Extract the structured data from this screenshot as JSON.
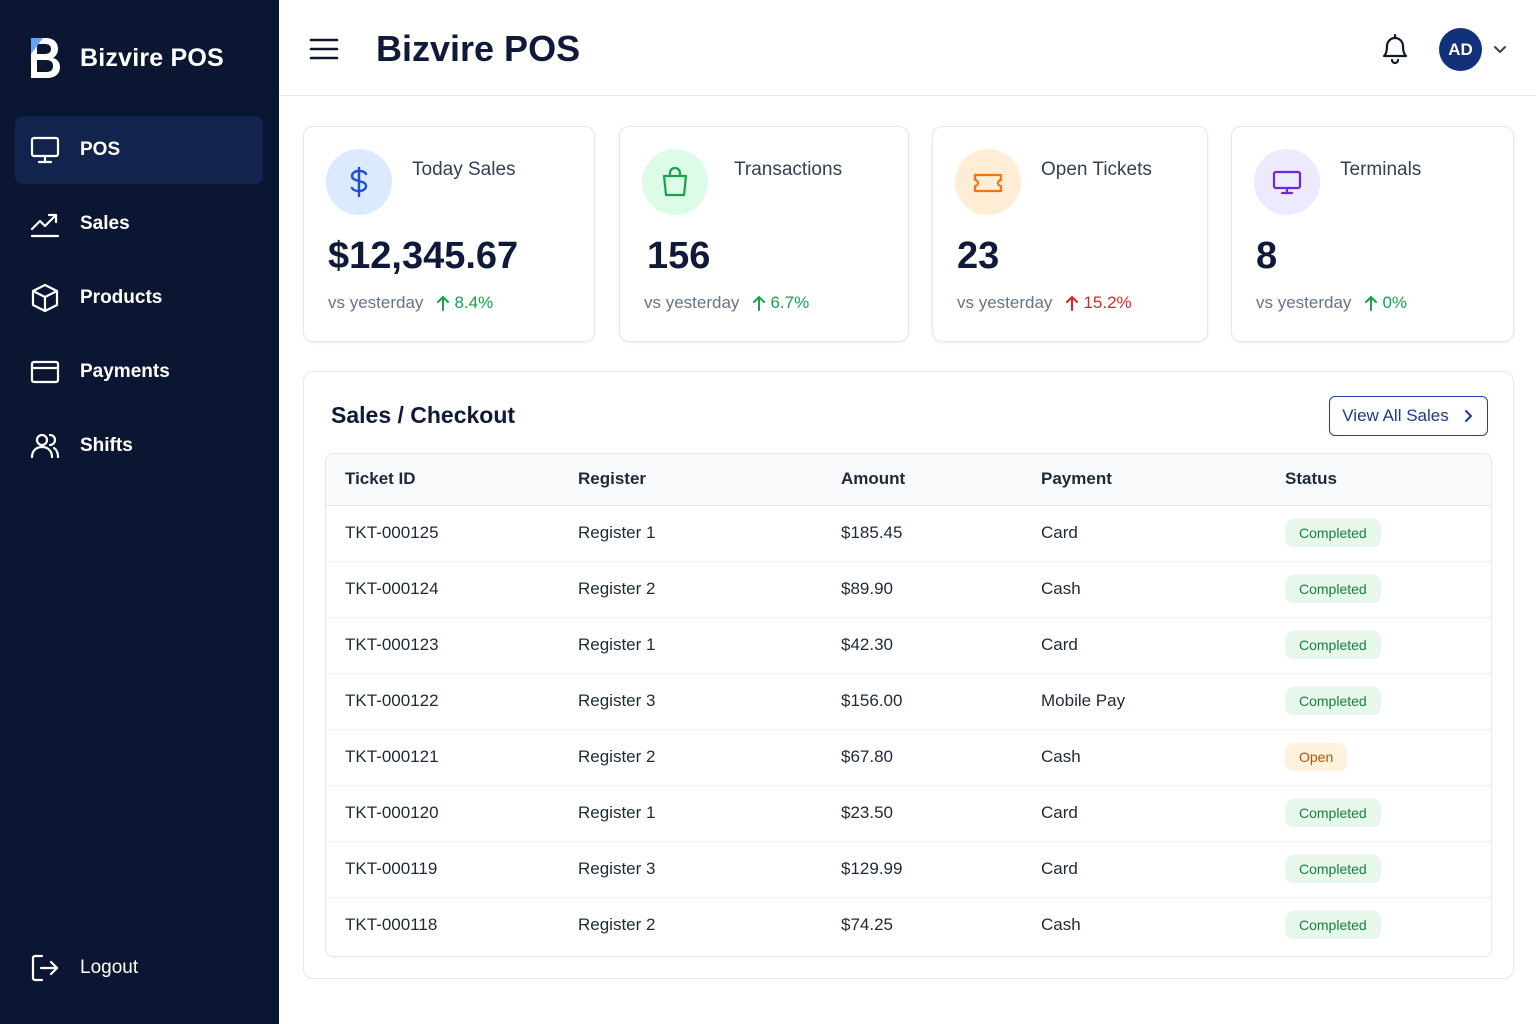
{
  "app": {
    "name": "Bizvire POS"
  },
  "sidebar": {
    "items": [
      {
        "label": "POS",
        "icon": "monitor-icon",
        "active": true
      },
      {
        "label": "Sales",
        "icon": "trend-chart-icon",
        "active": false
      },
      {
        "label": "Products",
        "icon": "box-icon",
        "active": false
      },
      {
        "label": "Payments",
        "icon": "credit-card-icon",
        "active": false
      },
      {
        "label": "Shifts",
        "icon": "users-icon",
        "active": false
      }
    ],
    "logout_label": "Logout"
  },
  "header": {
    "title": "Bizvire POS",
    "avatar_initials": "AD"
  },
  "stats": [
    {
      "label": "Today Sales",
      "value": "$12,345.67",
      "compare": "vs yesterday",
      "trend": "8.4%",
      "trend_color": "#16a34a",
      "icon": "dollar-icon",
      "icon_bg": "#dbeafe",
      "icon_color": "#1d4ed8"
    },
    {
      "label": "Transactions",
      "value": "156",
      "compare": "vs yesterday",
      "trend": "6.7%",
      "trend_color": "#16a34a",
      "icon": "shopping-bag-icon",
      "icon_bg": "#dcfce7",
      "icon_color": "#16a34a"
    },
    {
      "label": "Open Tickets",
      "value": "23",
      "compare": "vs yesterday",
      "trend": "15.2%",
      "trend_color": "#dc2626",
      "icon": "ticket-icon",
      "icon_bg": "#ffedd5",
      "icon_color": "#f97316"
    },
    {
      "label": "Terminals",
      "value": "8",
      "compare": "vs yesterday",
      "trend": "0%",
      "trend_color": "#16a34a",
      "icon": "terminal-icon",
      "icon_bg": "#ede9fe",
      "icon_color": "#6d28d9"
    }
  ],
  "sales": {
    "title": "Sales / Checkout",
    "view_all_label": "View All Sales",
    "columns": [
      "Ticket ID",
      "Register",
      "Amount",
      "Payment",
      "Status"
    ],
    "rows": [
      {
        "ticket": "TKT-000125",
        "register": "Register 1",
        "amount": "$185.45",
        "payment": "Card",
        "status": "Completed"
      },
      {
        "ticket": "TKT-000124",
        "register": "Register 2",
        "amount": "$89.90",
        "payment": "Cash",
        "status": "Completed"
      },
      {
        "ticket": "TKT-000123",
        "register": "Register 1",
        "amount": "$42.30",
        "payment": "Card",
        "status": "Completed"
      },
      {
        "ticket": "TKT-000122",
        "register": "Register 3",
        "amount": "$156.00",
        "payment": "Mobile Pay",
        "status": "Completed"
      },
      {
        "ticket": "TKT-000121",
        "register": "Register 2",
        "amount": "$67.80",
        "payment": "Cash",
        "status": "Open"
      },
      {
        "ticket": "TKT-000120",
        "register": "Register 1",
        "amount": "$23.50",
        "payment": "Card",
        "status": "Completed"
      },
      {
        "ticket": "TKT-000119",
        "register": "Register 3",
        "amount": "$129.99",
        "payment": "Card",
        "status": "Completed"
      },
      {
        "ticket": "TKT-000118",
        "register": "Register 2",
        "amount": "$74.25",
        "payment": "Cash",
        "status": "Completed"
      }
    ]
  }
}
